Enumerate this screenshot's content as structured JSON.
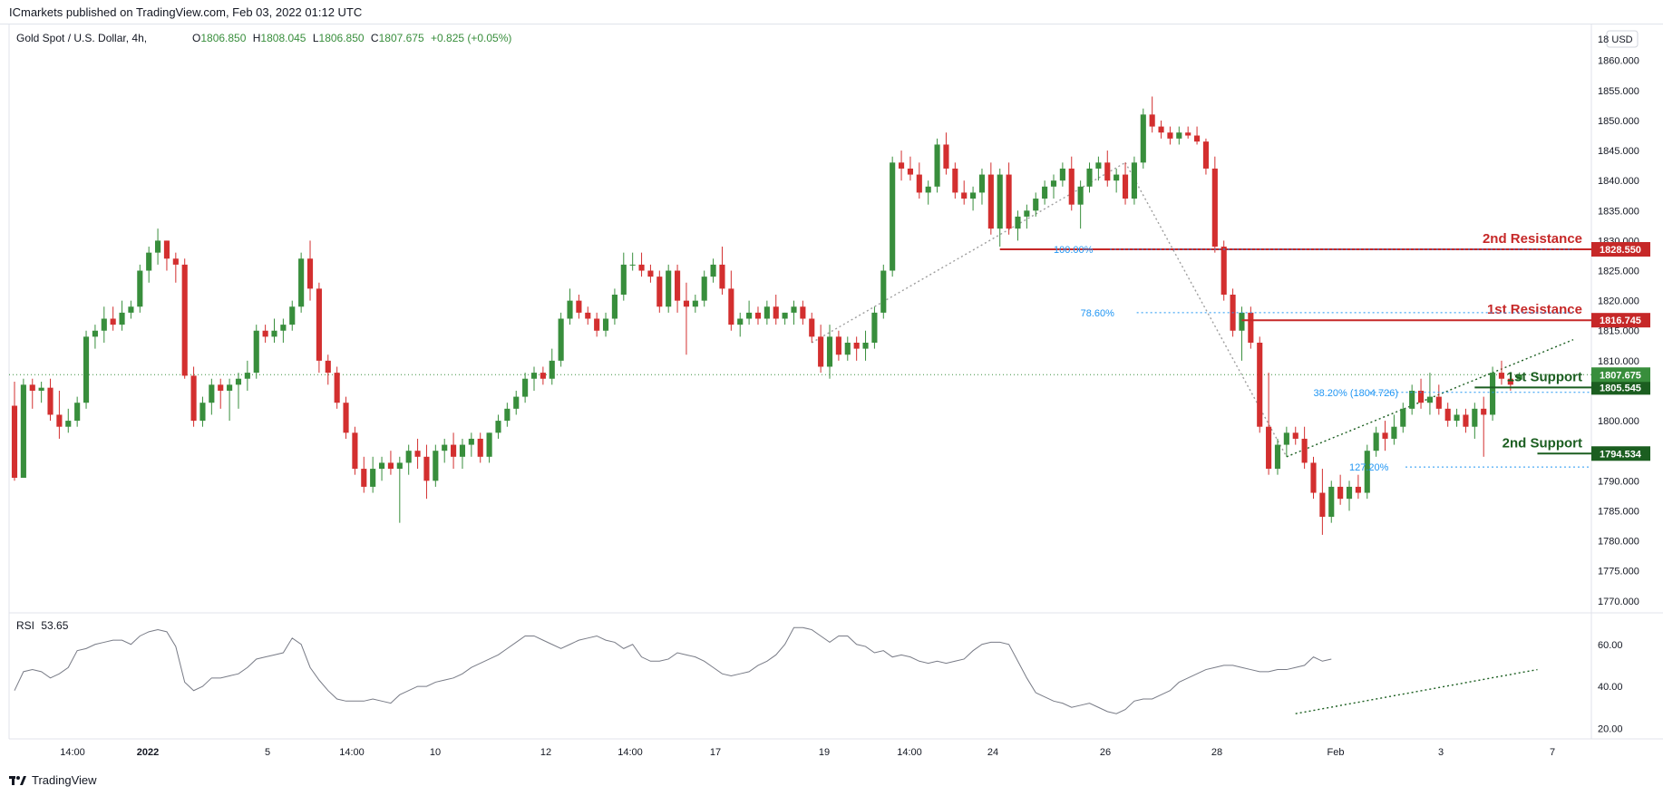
{
  "header": {
    "published": "ICmarkets published on TradingView.com, Feb 03, 2022 01:12 UTC"
  },
  "legend": {
    "symbol": "Gold Spot / U.S. Dollar, 4h,",
    "open_label": "O",
    "open": "1806.850",
    "high_label": "H",
    "high": "1808.045",
    "low_label": "L",
    "low": "1806.850",
    "close_label": "C",
    "close": "1807.675",
    "change": "+0.825 (+0.05%)"
  },
  "currency_badge": "USD",
  "rsi_legend": {
    "label": "RSI",
    "value": "53.65"
  },
  "footer": {
    "logo_text": "TradingView"
  },
  "colors": {
    "up": "#388e3c",
    "down": "#d32f2f",
    "resistance": "#c62828",
    "support": "#1b5e20",
    "fib": "#2962ff",
    "text_fib": "#2196f3"
  },
  "chart_data": {
    "type": "candlestick",
    "title": "Gold Spot / U.S. Dollar, 4h",
    "ylim": [
      1768,
      1866
    ],
    "y_ticks": [
      "18",
      "1860.000",
      "1855.000",
      "1850.000",
      "1845.000",
      "1840.000",
      "1835.000",
      "1830.000",
      "1825.000",
      "1820.000",
      "1815.000",
      "1810.000",
      "1805.000",
      "1800.000",
      "1795.000",
      "1790.000",
      "1785.000",
      "1780.000",
      "1775.000",
      "1770.000"
    ],
    "x_ticks": [
      "14:00",
      "2022",
      "5",
      "14:00",
      "10",
      "12",
      "14:00",
      "17",
      "19",
      "14:00",
      "24",
      "26",
      "28",
      "Feb",
      "3",
      "7"
    ],
    "levels": [
      {
        "name": "2nd Resistance",
        "price": 1828.55,
        "label": "1828.550",
        "kind": "resistance"
      },
      {
        "name": "1st Resistance",
        "price": 1816.745,
        "label": "1816.745",
        "kind": "resistance"
      },
      {
        "name": "1st Support",
        "price": 1805.545,
        "label": "1805.545",
        "kind": "support"
      },
      {
        "name": "2nd Support",
        "price": 1794.534,
        "label": "1794.534",
        "kind": "support"
      }
    ],
    "last_price": {
      "price": 1807.675,
      "label": "1807.675"
    },
    "fib_labels": [
      {
        "text": "100.00%",
        "price": 1828.55
      },
      {
        "text": "78.60%",
        "price": 1818.0
      },
      {
        "text": "38.20% (1804.726)",
        "price": 1804.726
      },
      {
        "text": "127.20%",
        "price": 1792.3
      }
    ],
    "candles": [
      [
        1802.5,
        1806.5,
        1790,
        1790.5
      ],
      [
        1790.5,
        1807,
        1790.5,
        1806
      ],
      [
        1806,
        1807,
        1802,
        1805
      ],
      [
        1805,
        1806.5,
        1803,
        1805.5
      ],
      [
        1805.5,
        1807,
        1800,
        1801
      ],
      [
        1801,
        1805,
        1797,
        1799
      ],
      [
        1799,
        1802,
        1798,
        1800
      ],
      [
        1800,
        1804,
        1799,
        1803
      ],
      [
        1803,
        1815,
        1802,
        1814
      ],
      [
        1814,
        1816,
        1812,
        1815
      ],
      [
        1815,
        1819,
        1813,
        1817
      ],
      [
        1817,
        1819,
        1815,
        1816
      ],
      [
        1816,
        1820,
        1815,
        1818
      ],
      [
        1818,
        1820,
        1817,
        1819
      ],
      [
        1819,
        1826,
        1818,
        1825
      ],
      [
        1825,
        1829,
        1823,
        1828
      ],
      [
        1828,
        1832,
        1826,
        1830
      ],
      [
        1830,
        1830,
        1825,
        1827
      ],
      [
        1827,
        1828,
        1823,
        1826
      ],
      [
        1826,
        1827,
        1807,
        1807.5
      ],
      [
        1807.5,
        1809,
        1799,
        1800
      ],
      [
        1800,
        1804,
        1799,
        1803
      ],
      [
        1803,
        1807,
        1801,
        1806
      ],
      [
        1806,
        1807,
        1802,
        1805
      ],
      [
        1805,
        1807,
        1800,
        1806
      ],
      [
        1806,
        1808,
        1802,
        1807
      ],
      [
        1807,
        1810,
        1805,
        1808
      ],
      [
        1808,
        1816,
        1807,
        1815
      ],
      [
        1815,
        1816,
        1813,
        1814
      ],
      [
        1814,
        1817,
        1813,
        1815
      ],
      [
        1815,
        1817,
        1813,
        1816
      ],
      [
        1816,
        1820,
        1815,
        1819
      ],
      [
        1819,
        1828,
        1818,
        1827
      ],
      [
        1827,
        1830,
        1820,
        1822
      ],
      [
        1822,
        1823,
        1808,
        1810
      ],
      [
        1810,
        1811,
        1806,
        1808
      ],
      [
        1808,
        1809,
        1802,
        1803
      ],
      [
        1803,
        1804,
        1797,
        1798
      ],
      [
        1798,
        1799,
        1791,
        1792
      ],
      [
        1792,
        1794,
        1788,
        1789
      ],
      [
        1789,
        1794,
        1788,
        1792
      ],
      [
        1792,
        1794,
        1790,
        1793
      ],
      [
        1793,
        1795,
        1791,
        1792
      ],
      [
        1792,
        1794,
        1783,
        1793
      ],
      [
        1793,
        1796,
        1791,
        1795
      ],
      [
        1795,
        1797,
        1792,
        1794
      ],
      [
        1794,
        1796,
        1787,
        1790
      ],
      [
        1790,
        1796,
        1789,
        1795
      ],
      [
        1795,
        1797,
        1793,
        1796
      ],
      [
        1796,
        1798,
        1792,
        1794
      ],
      [
        1794,
        1797,
        1792,
        1796
      ],
      [
        1796,
        1798,
        1794,
        1797
      ],
      [
        1797,
        1798,
        1793,
        1794
      ],
      [
        1794,
        1798,
        1793,
        1798
      ],
      [
        1798,
        1801,
        1797,
        1800
      ],
      [
        1800,
        1803,
        1799,
        1802
      ],
      [
        1802,
        1805,
        1801,
        1804
      ],
      [
        1804,
        1808,
        1803,
        1807
      ],
      [
        1807,
        1809,
        1805,
        1808
      ],
      [
        1808,
        1809,
        1806,
        1807
      ],
      [
        1807,
        1812,
        1806,
        1810
      ],
      [
        1810,
        1818,
        1809,
        1817
      ],
      [
        1817,
        1822,
        1816,
        1820
      ],
      [
        1820,
        1821,
        1817,
        1818
      ],
      [
        1818,
        1819,
        1816,
        1817
      ],
      [
        1817,
        1818,
        1814,
        1815
      ],
      [
        1815,
        1818,
        1814,
        1817
      ],
      [
        1817,
        1822,
        1816,
        1821
      ],
      [
        1821,
        1828,
        1820,
        1826
      ],
      [
        1826,
        1828,
        1825,
        1826
      ],
      [
        1826,
        1828,
        1824,
        1825
      ],
      [
        1825,
        1826,
        1823,
        1824
      ],
      [
        1824,
        1825,
        1818,
        1819
      ],
      [
        1819,
        1826,
        1818,
        1825
      ],
      [
        1825,
        1826,
        1818,
        1820
      ],
      [
        1820,
        1823,
        1811,
        1819
      ],
      [
        1819,
        1821,
        1818,
        1820
      ],
      [
        1820,
        1825,
        1819,
        1824
      ],
      [
        1824,
        1827,
        1823,
        1826
      ],
      [
        1826,
        1829,
        1821,
        1822
      ],
      [
        1822,
        1825,
        1815,
        1816
      ],
      [
        1816,
        1818,
        1814,
        1817
      ],
      [
        1817,
        1820,
        1816,
        1818
      ],
      [
        1818,
        1819,
        1816,
        1817
      ],
      [
        1817,
        1820,
        1816,
        1819
      ],
      [
        1819,
        1821,
        1816,
        1817
      ],
      [
        1817,
        1818,
        1816,
        1818
      ],
      [
        1818,
        1820,
        1816,
        1819
      ],
      [
        1819,
        1820,
        1816,
        1817
      ],
      [
        1817,
        1818,
        1813,
        1814
      ],
      [
        1814,
        1816,
        1808,
        1809
      ],
      [
        1809,
        1816,
        1807,
        1814
      ],
      [
        1814,
        1815,
        1810,
        1811
      ],
      [
        1811,
        1814,
        1810,
        1813
      ],
      [
        1813,
        1814,
        1810,
        1812
      ],
      [
        1812,
        1815,
        1810,
        1813
      ],
      [
        1813,
        1819,
        1812,
        1818
      ],
      [
        1818,
        1826,
        1817,
        1825
      ],
      [
        1825,
        1844,
        1824,
        1843
      ],
      [
        1843,
        1845,
        1840,
        1842
      ],
      [
        1842,
        1844,
        1840,
        1841
      ],
      [
        1841,
        1843,
        1837,
        1838
      ],
      [
        1838,
        1840,
        1836,
        1839
      ],
      [
        1839,
        1847,
        1838,
        1846
      ],
      [
        1846,
        1848,
        1841,
        1842
      ],
      [
        1842,
        1843,
        1837,
        1838
      ],
      [
        1838,
        1840,
        1836,
        1837
      ],
      [
        1837,
        1839,
        1835,
        1838
      ],
      [
        1838,
        1842,
        1836,
        1841
      ],
      [
        1841,
        1843,
        1831,
        1832
      ],
      [
        1832,
        1842,
        1829,
        1841
      ],
      [
        1841,
        1843,
        1831,
        1832
      ],
      [
        1832,
        1835,
        1830,
        1834
      ],
      [
        1834,
        1836,
        1832,
        1835
      ],
      [
        1835,
        1838,
        1834,
        1837
      ],
      [
        1837,
        1840,
        1836,
        1839
      ],
      [
        1839,
        1841,
        1837,
        1840
      ],
      [
        1840,
        1843,
        1839,
        1842
      ],
      [
        1842,
        1844,
        1835,
        1836
      ],
      [
        1836,
        1840,
        1832,
        1839
      ],
      [
        1839,
        1843,
        1838,
        1842
      ],
      [
        1842,
        1844,
        1840,
        1843
      ],
      [
        1843,
        1845,
        1839,
        1840
      ],
      [
        1840,
        1842,
        1838,
        1841
      ],
      [
        1841,
        1843,
        1836,
        1837
      ],
      [
        1837,
        1844,
        1836,
        1843
      ],
      [
        1843,
        1852,
        1842,
        1851
      ],
      [
        1851,
        1854,
        1848,
        1849
      ],
      [
        1849,
        1850,
        1847,
        1848
      ],
      [
        1848,
        1849,
        1846,
        1847
      ],
      [
        1847,
        1849,
        1846,
        1848
      ],
      [
        1848,
        1849,
        1847,
        1847.5
      ],
      [
        1847.5,
        1849,
        1846,
        1846.5
      ],
      [
        1846.5,
        1847,
        1841,
        1842
      ],
      [
        1842,
        1844,
        1828,
        1829
      ],
      [
        1829,
        1830,
        1820,
        1821
      ],
      [
        1821,
        1822,
        1814,
        1815
      ],
      [
        1815,
        1819,
        1810,
        1818
      ],
      [
        1818,
        1819,
        1812,
        1813
      ],
      [
        1813,
        1814,
        1798,
        1799
      ],
      [
        1799,
        1808,
        1791,
        1792
      ],
      [
        1792,
        1797,
        1791,
        1796
      ],
      [
        1796,
        1799,
        1794,
        1798
      ],
      [
        1798,
        1799,
        1796,
        1797
      ],
      [
        1797,
        1799,
        1792,
        1793
      ],
      [
        1793,
        1794,
        1787,
        1788
      ],
      [
        1788,
        1792,
        1781,
        1784
      ],
      [
        1784,
        1790,
        1783,
        1789
      ],
      [
        1789,
        1791,
        1786,
        1787
      ],
      [
        1787,
        1790,
        1785,
        1789
      ],
      [
        1789,
        1791,
        1787,
        1788
      ],
      [
        1788,
        1796,
        1787,
        1795
      ],
      [
        1795,
        1799,
        1794,
        1798
      ],
      [
        1798,
        1800,
        1795,
        1797
      ],
      [
        1797,
        1801,
        1796,
        1799
      ],
      [
        1799,
        1803,
        1798,
        1802
      ],
      [
        1802,
        1806,
        1801,
        1805
      ],
      [
        1805,
        1807,
        1802,
        1803
      ],
      [
        1803,
        1808,
        1801,
        1804
      ],
      [
        1804,
        1806,
        1801,
        1802
      ],
      [
        1802,
        1803,
        1799,
        1800
      ],
      [
        1800,
        1802,
        1799,
        1801
      ],
      [
        1801,
        1802,
        1798,
        1799
      ],
      [
        1799,
        1803,
        1797,
        1802
      ],
      [
        1802,
        1804,
        1794,
        1801
      ],
      [
        1801,
        1809,
        1800,
        1808
      ],
      [
        1808,
        1810,
        1806,
        1807
      ],
      [
        1807,
        1808,
        1805,
        1806
      ],
      [
        1806.85,
        1808.045,
        1806.85,
        1807.675
      ]
    ],
    "rsi": {
      "name": "RSI",
      "value": 53.65,
      "ylim": [
        15,
        75
      ],
      "ticks": [
        "60.00",
        "40.00",
        "20.00"
      ],
      "values": [
        38,
        47,
        48,
        47,
        44,
        46,
        49,
        57,
        58,
        60,
        61,
        62,
        62,
        60,
        64,
        66,
        67,
        66,
        59,
        42,
        38,
        40,
        44,
        44,
        45,
        46,
        49,
        53,
        54,
        55,
        56,
        63,
        60,
        49,
        43,
        38,
        34,
        33,
        33,
        33,
        34,
        33,
        32,
        36,
        38,
        40,
        40,
        42,
        43,
        44,
        46,
        49,
        51,
        53,
        55,
        58,
        61,
        64,
        64,
        62,
        60,
        58,
        60,
        62,
        63,
        64,
        62,
        61,
        58,
        60,
        54,
        52,
        52,
        53,
        56,
        55,
        54,
        52,
        49,
        46,
        45,
        46,
        47,
        50,
        52,
        55,
        60,
        68,
        68,
        67,
        64,
        61,
        64,
        64,
        60,
        59,
        56,
        57,
        54,
        55,
        54,
        52,
        51,
        52,
        51,
        52,
        53,
        57,
        60,
        61,
        61,
        60,
        52,
        44,
        37,
        35,
        33,
        32,
        30,
        31,
        32,
        30,
        28,
        27,
        29,
        33,
        34,
        34,
        36,
        38,
        42,
        44,
        46,
        48,
        49,
        50,
        50,
        49,
        48,
        47,
        47,
        48,
        48,
        49,
        50,
        54,
        52,
        53
      ]
    }
  }
}
